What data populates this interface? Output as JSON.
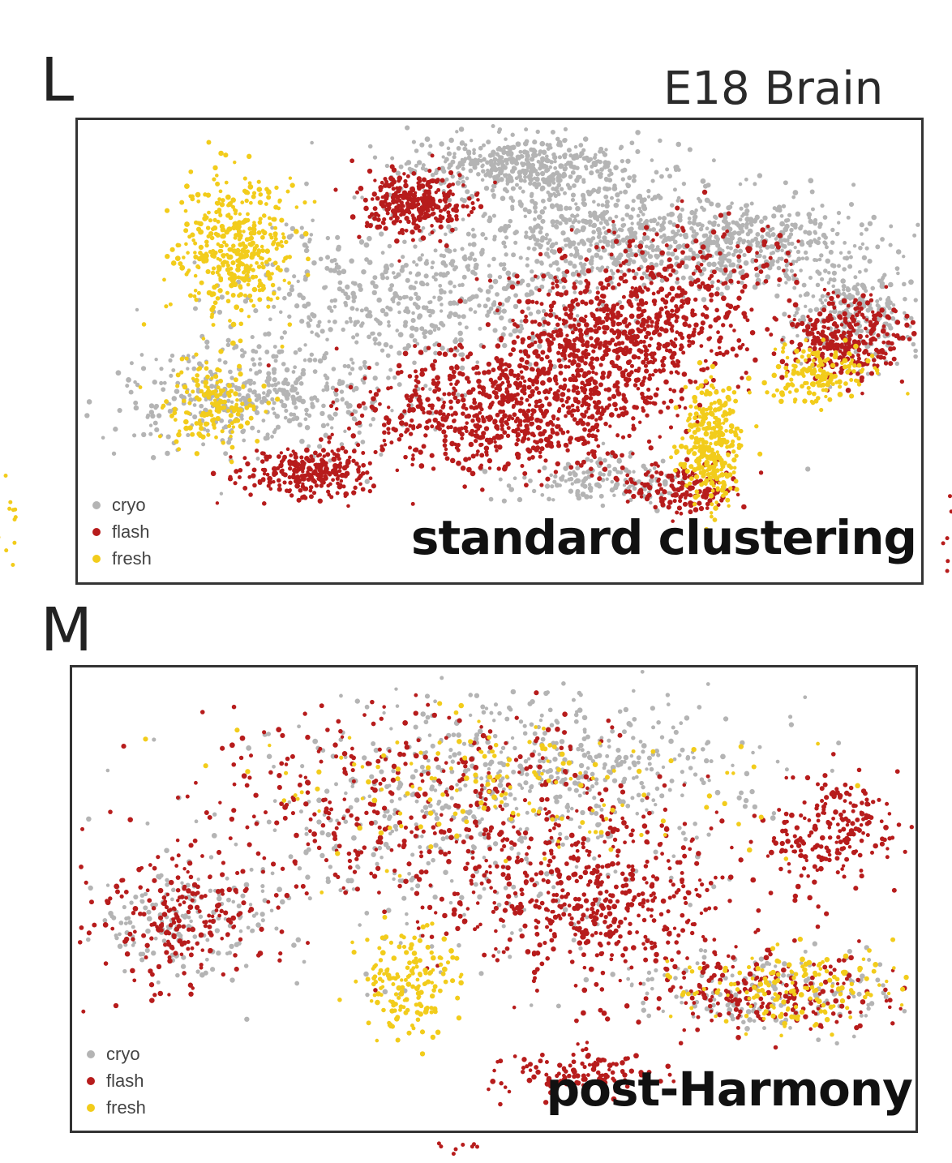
{
  "figure": {
    "title": "E18 Brain",
    "colors": {
      "cryo": "#b4b4b4",
      "flash": "#b71c1c",
      "fresh": "#f2cc1b"
    }
  },
  "chart_data": [
    {
      "type": "scatter",
      "panel": "L",
      "title": "",
      "annotation": "standard clustering",
      "legend": [
        "cryo",
        "flash",
        "fresh"
      ],
      "legend_position": "bottom-left",
      "grid": false,
      "series": [
        {
          "name": "cryo",
          "color": "#b4b4b4",
          "regions": [
            {
              "cx": 0.52,
              "cy": 0.1,
              "rx": 0.13,
              "ry": 0.06,
              "w": 0.9
            },
            {
              "cx": 0.4,
              "cy": 0.38,
              "rx": 0.2,
              "ry": 0.14,
              "w": 1.0
            },
            {
              "cx": 0.62,
              "cy": 0.25,
              "rx": 0.16,
              "ry": 0.1,
              "w": 1.0
            },
            {
              "cx": 0.8,
              "cy": 0.26,
              "rx": 0.12,
              "ry": 0.09,
              "w": 0.7
            },
            {
              "cx": 0.22,
              "cy": 0.6,
              "rx": 0.16,
              "ry": 0.1,
              "w": 0.8
            },
            {
              "cx": 0.92,
              "cy": 0.42,
              "rx": 0.07,
              "ry": 0.1,
              "w": 0.5
            },
            {
              "cx": 0.63,
              "cy": 0.78,
              "rx": 0.1,
              "ry": 0.05,
              "w": 0.3
            }
          ]
        },
        {
          "name": "flash",
          "color": "#b71c1c",
          "regions": [
            {
              "cx": 0.5,
              "cy": 0.63,
              "rx": 0.15,
              "ry": 0.12,
              "w": 1.4
            },
            {
              "cx": 0.63,
              "cy": 0.48,
              "rx": 0.12,
              "ry": 0.14,
              "w": 1.4
            },
            {
              "cx": 0.4,
              "cy": 0.18,
              "rx": 0.06,
              "ry": 0.06,
              "w": 0.6
            },
            {
              "cx": 0.27,
              "cy": 0.76,
              "rx": 0.07,
              "ry": 0.05,
              "w": 0.5
            },
            {
              "cx": 0.91,
              "cy": 0.47,
              "rx": 0.06,
              "ry": 0.08,
              "w": 0.6
            },
            {
              "cx": 0.73,
              "cy": 0.35,
              "rx": 0.12,
              "ry": 0.12,
              "w": 0.4
            },
            {
              "cx": 0.71,
              "cy": 0.8,
              "rx": 0.06,
              "ry": 0.05,
              "w": 0.3
            }
          ]
        },
        {
          "name": "fresh",
          "color": "#f2cc1b",
          "regions": [
            {
              "cx": 0.19,
              "cy": 0.28,
              "rx": 0.06,
              "ry": 0.14,
              "w": 0.8
            },
            {
              "cx": 0.75,
              "cy": 0.7,
              "rx": 0.03,
              "ry": 0.12,
              "w": 0.6
            },
            {
              "cx": 0.88,
              "cy": 0.55,
              "rx": 0.05,
              "ry": 0.06,
              "w": 0.3
            },
            {
              "cx": 0.16,
              "cy": 0.62,
              "rx": 0.05,
              "ry": 0.08,
              "w": 0.3
            }
          ]
        }
      ]
    },
    {
      "type": "scatter",
      "panel": "M",
      "title": "",
      "annotation": "post-Harmony",
      "legend": [
        "cryo",
        "flash",
        "fresh"
      ],
      "legend_position": "bottom-left",
      "grid": false,
      "series": [
        {
          "name": "cryo",
          "color": "#b4b4b4",
          "regions": [
            {
              "cx": 0.45,
              "cy": 0.35,
              "rx": 0.28,
              "ry": 0.25,
              "w": 1.0
            },
            {
              "cx": 0.6,
              "cy": 0.2,
              "rx": 0.2,
              "ry": 0.12,
              "w": 0.7
            },
            {
              "cx": 0.13,
              "cy": 0.55,
              "rx": 0.09,
              "ry": 0.11,
              "w": 0.4
            },
            {
              "cx": 0.82,
              "cy": 0.7,
              "rx": 0.14,
              "ry": 0.08,
              "w": 0.4
            }
          ]
        },
        {
          "name": "flash",
          "color": "#b71c1c",
          "regions": [
            {
              "cx": 0.62,
              "cy": 0.5,
              "rx": 0.14,
              "ry": 0.17,
              "w": 1.2
            },
            {
              "cx": 0.4,
              "cy": 0.3,
              "rx": 0.25,
              "ry": 0.2,
              "w": 1.0
            },
            {
              "cx": 0.9,
              "cy": 0.36,
              "rx": 0.07,
              "ry": 0.11,
              "w": 0.5
            },
            {
              "cx": 0.13,
              "cy": 0.55,
              "rx": 0.09,
              "ry": 0.11,
              "w": 0.5
            },
            {
              "cx": 0.82,
              "cy": 0.7,
              "rx": 0.14,
              "ry": 0.08,
              "w": 0.5
            },
            {
              "cx": 0.6,
              "cy": 0.88,
              "rx": 0.08,
              "ry": 0.05,
              "w": 0.3
            }
          ]
        },
        {
          "name": "fresh",
          "color": "#f2cc1b",
          "regions": [
            {
              "cx": 0.4,
              "cy": 0.68,
              "rx": 0.06,
              "ry": 0.1,
              "w": 0.4
            },
            {
              "cx": 0.85,
              "cy": 0.7,
              "rx": 0.12,
              "ry": 0.07,
              "w": 0.4
            },
            {
              "cx": 0.5,
              "cy": 0.25,
              "rx": 0.25,
              "ry": 0.15,
              "w": 0.4
            }
          ]
        }
      ]
    }
  ],
  "panels": {
    "L": {
      "letter": "L",
      "method": "standard clustering",
      "legend": [
        {
          "label": "cryo"
        },
        {
          "label": "flash"
        },
        {
          "label": "fresh"
        }
      ]
    },
    "M": {
      "letter": "M",
      "method": "post-Harmony",
      "legend": [
        {
          "label": "cryo"
        },
        {
          "label": "flash"
        },
        {
          "label": "fresh"
        }
      ]
    }
  }
}
